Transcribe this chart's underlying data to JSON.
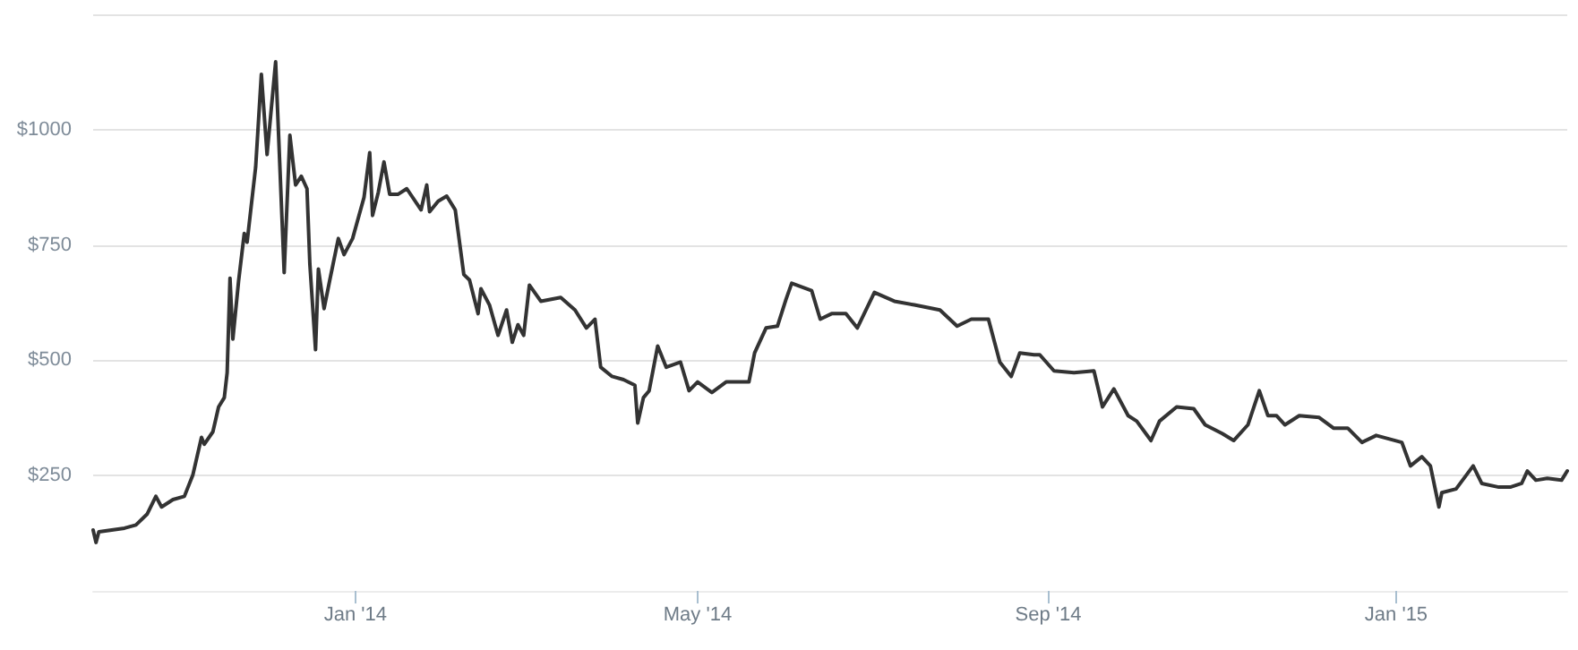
{
  "chart_data": {
    "type": "line",
    "grid": "y",
    "marker": "none",
    "line_style": "solid",
    "xlim": [
      "2013-10-01",
      "2015-03-02"
    ],
    "xticks": [
      {
        "value": "2014-01",
        "label": "Jan '14"
      },
      {
        "value": "2014-05",
        "label": "May '14"
      },
      {
        "value": "2014-09",
        "label": "Sep '14"
      },
      {
        "value": "2015-01",
        "label": "Jan '15"
      }
    ],
    "ylim": [
      0,
      1250
    ],
    "yticks": [
      {
        "value": 250,
        "label": "$250"
      },
      {
        "value": 500,
        "label": "$500"
      },
      {
        "value": 750,
        "label": "$750"
      },
      {
        "value": 1000,
        "label": "$1000"
      },
      {
        "value": 1250,
        "label": null
      }
    ],
    "series": [
      {
        "color": "#333333",
        "x": [
          "2013-10-01",
          "2013-10-02",
          "2013-10-03",
          "2013-10-12",
          "2013-10-16",
          "2013-10-20",
          "2013-10-23",
          "2013-10-25",
          "2013-10-29",
          "2013-11-02",
          "2013-11-05",
          "2013-11-08",
          "2013-11-09",
          "2013-11-12",
          "2013-11-14",
          "2013-11-16",
          "2013-11-17",
          "2013-11-18",
          "2013-11-19",
          "2013-11-21",
          "2013-11-23",
          "2013-11-24",
          "2013-11-27",
          "2013-11-29",
          "2013-12-01",
          "2013-12-04",
          "2013-12-07",
          "2013-12-09",
          "2013-12-11",
          "2013-12-13",
          "2013-12-15",
          "2013-12-16",
          "2013-12-18",
          "2013-12-19",
          "2013-12-21",
          "2013-12-23",
          "2013-12-26",
          "2013-12-28",
          "2013-12-31",
          "2014-01-04",
          "2014-01-06",
          "2014-01-07",
          "2014-01-09",
          "2014-01-11",
          "2014-01-13",
          "2014-01-16",
          "2014-01-19",
          "2014-01-24",
          "2014-01-26",
          "2014-01-27",
          "2014-01-30",
          "2014-02-02",
          "2014-02-05",
          "2014-02-08",
          "2014-02-10",
          "2014-02-13",
          "2014-02-14",
          "2014-02-17",
          "2014-02-20",
          "2014-02-23",
          "2014-02-25",
          "2014-02-27",
          "2014-03-01",
          "2014-03-03",
          "2014-03-07",
          "2014-03-14",
          "2014-03-19",
          "2014-03-23",
          "2014-03-26",
          "2014-03-28",
          "2014-04-01",
          "2014-04-05",
          "2014-04-09",
          "2014-04-10",
          "2014-04-12",
          "2014-04-14",
          "2014-04-17",
          "2014-04-20",
          "2014-04-25",
          "2014-04-28",
          "2014-05-01",
          "2014-05-06",
          "2014-05-11",
          "2014-05-19",
          "2014-05-21",
          "2014-05-25",
          "2014-05-29",
          "2014-06-01",
          "2014-06-03",
          "2014-06-10",
          "2014-06-13",
          "2014-06-17",
          "2014-06-22",
          "2014-06-26",
          "2014-07-02",
          "2014-07-09",
          "2014-07-16",
          "2014-07-25",
          "2014-07-31",
          "2014-08-05",
          "2014-08-11",
          "2014-08-15",
          "2014-08-19",
          "2014-08-22",
          "2014-08-27",
          "2014-08-29",
          "2014-09-03",
          "2014-09-10",
          "2014-09-17",
          "2014-09-20",
          "2014-09-24",
          "2014-09-29",
          "2014-10-02",
          "2014-10-07",
          "2014-10-10",
          "2014-10-16",
          "2014-10-22",
          "2014-10-26",
          "2014-11-01",
          "2014-11-05",
          "2014-11-10",
          "2014-11-14",
          "2014-11-17",
          "2014-11-20",
          "2014-11-23",
          "2014-11-28",
          "2014-12-05",
          "2014-12-10",
          "2014-12-15",
          "2014-12-20",
          "2014-12-25",
          "2015-01-03",
          "2015-01-06",
          "2015-01-10",
          "2015-01-13",
          "2015-01-16",
          "2015-01-17",
          "2015-01-22",
          "2015-01-28",
          "2015-01-31",
          "2015-02-06",
          "2015-02-10",
          "2015-02-14",
          "2015-02-16",
          "2015-02-19",
          "2015-02-23",
          "2015-02-28",
          "2015-03-02"
        ],
        "values": [
          132,
          105,
          128,
          136,
          143,
          167,
          205,
          182,
          198,
          205,
          252,
          333,
          318,
          345,
          399,
          419,
          473,
          678,
          546,
          671,
          775,
          756,
          919,
          1120,
          946,
          1147,
          690,
          988,
          880,
          899,
          872,
          709,
          523,
          698,
          612,
          674,
          764,
          729,
          764,
          853,
          950,
          814,
          864,
          930,
          860,
          860,
          872,
          826,
          880,
          822,
          845,
          856,
          826,
          686,
          674,
          601,
          655,
          620,
          554,
          609,
          539,
          577,
          554,
          663,
          628,
          636,
          609,
          570,
          589,
          485,
          465,
          458,
          446,
          364,
          419,
          434,
          531,
          485,
          496,
          434,
          453,
          430,
          453,
          453,
          516,
          570,
          574,
          632,
          667,
          651,
          589,
          601,
          601,
          570,
          647,
          628,
          620,
          609,
          574,
          589,
          589,
          496,
          465,
          516,
          512,
          512,
          477,
          473,
          477,
          399,
          438,
          380,
          368,
          326,
          368,
          399,
          395,
          360,
          341,
          326,
          360,
          434,
          380,
          380,
          360,
          380,
          376,
          353,
          353,
          322,
          337,
          322,
          271,
          291,
          271,
          182,
          213,
          221,
          271,
          233,
          225,
          225,
          233,
          260,
          240,
          244,
          240,
          260
        ]
      }
    ]
  }
}
